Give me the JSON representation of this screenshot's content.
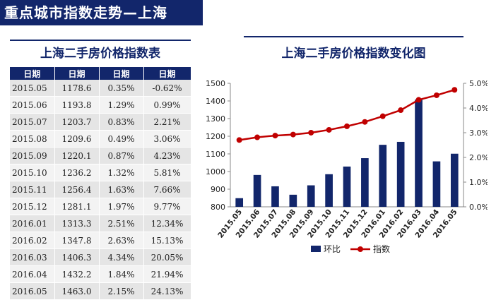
{
  "banner_title": "重点城市指数走势—上海",
  "table": {
    "title": "上海二手房价格指数表",
    "headers": [
      "日期",
      "日期",
      "日期",
      "日期"
    ],
    "rows": [
      [
        "2015.05",
        "1178.6",
        "0.35%",
        "-0.62%"
      ],
      [
        "2015.06",
        "1193.8",
        "1.29%",
        "0.99%"
      ],
      [
        "2015.07",
        "1203.7",
        "0.83%",
        "2.21%"
      ],
      [
        "2015.08",
        "1209.6",
        "0.49%",
        "3.06%"
      ],
      [
        "2015.09",
        "1220.1",
        "0.87%",
        "4.23%"
      ],
      [
        "2015.10",
        "1236.2",
        "1.32%",
        "5.81%"
      ],
      [
        "2015.11",
        "1256.4",
        "1.63%",
        "7.66%"
      ],
      [
        "2015.12",
        "1281.1",
        "1.97%",
        "9.77%"
      ],
      [
        "2016.01",
        "1313.3",
        "2.51%",
        "12.34%"
      ],
      [
        "2016.02",
        "1347.8",
        "2.63%",
        "15.13%"
      ],
      [
        "2016.03",
        "1406.3",
        "4.34%",
        "20.05%"
      ],
      [
        "2016.04",
        "1432.2",
        "1.84%",
        "21.94%"
      ],
      [
        "2016.05",
        "1463.0",
        "2.15%",
        "24.13%"
      ]
    ]
  },
  "chart_data": {
    "type": "bar",
    "title": "上海二手房价格指数变化图",
    "categories": [
      "2015.05",
      "2015.06",
      "2015.07",
      "2015.08",
      "2015.09",
      "2015.10",
      "2015.11",
      "2015.12",
      "2016.01",
      "2016.02",
      "2016.03",
      "2016.04",
      "2016.05"
    ],
    "series": [
      {
        "name": "环比",
        "type": "bar",
        "axis": "right",
        "color": "#12266b",
        "values": [
          0.35,
          1.29,
          0.83,
          0.49,
          0.87,
          1.32,
          1.63,
          1.97,
          2.51,
          2.63,
          4.34,
          1.84,
          2.15
        ]
      },
      {
        "name": "指数",
        "type": "line",
        "axis": "left",
        "color": "#c00000",
        "values": [
          1178.6,
          1193.8,
          1203.7,
          1209.6,
          1220.1,
          1236.2,
          1256.4,
          1281.1,
          1313.3,
          1347.8,
          1406.3,
          1432.2,
          1463.0
        ]
      }
    ],
    "y_left": {
      "min": 800,
      "max": 1500,
      "ticks": [
        "800",
        "900",
        "1000",
        "1100",
        "1200",
        "1300",
        "1400",
        "1500"
      ]
    },
    "y_right": {
      "min": 0,
      "max": 5,
      "ticks": [
        "0.0%",
        "1.0%",
        "2.0%",
        "3.0%",
        "4.0%",
        "5.0%"
      ]
    },
    "legend": "bottom",
    "grid": false
  }
}
